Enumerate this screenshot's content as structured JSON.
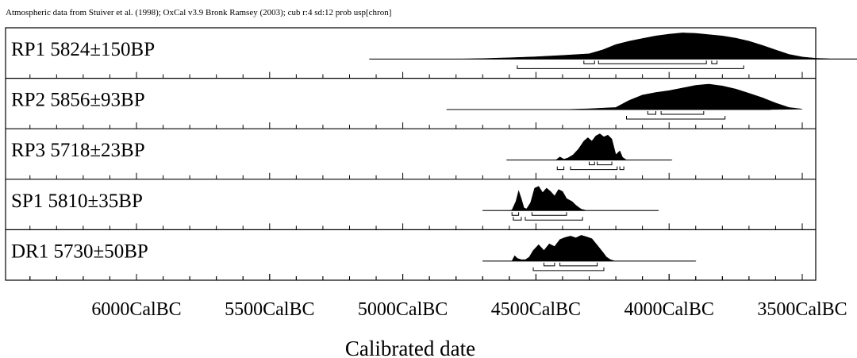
{
  "header": "Atmospheric data from Stuiver et al. (1998); OxCal v3.9 Bronk Ramsey (2003); cub r:4 sd:12 prob usp[chron]",
  "chart_data": {
    "type": "area",
    "x_axis": {
      "label": "Calibrated date",
      "ticks": [
        {
          "year": -6000,
          "label": "6000CalBC"
        },
        {
          "year": -5500,
          "label": "5500CalBC"
        },
        {
          "year": -5000,
          "label": "5000CalBC"
        },
        {
          "year": -4500,
          "label": "4500CalBC"
        },
        {
          "year": -4000,
          "label": "4000CalBC"
        },
        {
          "year": -3500,
          "label": "3500CalBC"
        }
      ],
      "range": [
        -6400,
        -3450
      ]
    },
    "samples": [
      {
        "label": "RP1  5824±150BP",
        "range": [
          -5125,
          -3110
        ],
        "density": [
          [
            -5125,
            0
          ],
          [
            -4800,
            0
          ],
          [
            -4700,
            0.02
          ],
          [
            -4600,
            0.05
          ],
          [
            -4500,
            0.09
          ],
          [
            -4400,
            0.14
          ],
          [
            -4300,
            0.2
          ],
          [
            -4250,
            0.35
          ],
          [
            -4200,
            0.55
          ],
          [
            -4150,
            0.68
          ],
          [
            -4100,
            0.78
          ],
          [
            -4050,
            0.88
          ],
          [
            -4000,
            0.95
          ],
          [
            -3950,
            1.0
          ],
          [
            -3900,
            0.98
          ],
          [
            -3850,
            0.93
          ],
          [
            -3800,
            0.88
          ],
          [
            -3750,
            0.8
          ],
          [
            -3700,
            0.68
          ],
          [
            -3650,
            0.52
          ],
          [
            -3600,
            0.35
          ],
          [
            -3550,
            0.18
          ],
          [
            -3500,
            0.08
          ],
          [
            -3450,
            0.03
          ],
          [
            -3400,
            0.01
          ],
          [
            -3110,
            0
          ]
        ],
        "ranges_95": [
          [
            -4570,
            -3720
          ]
        ],
        "ranges_68": [
          [
            -4320,
            -4280
          ],
          [
            -4265,
            -3860
          ],
          [
            -3840,
            -3820
          ]
        ]
      },
      {
        "label": "RP2  5856±93BP",
        "range": [
          -4835,
          -3620
        ],
        "density": [
          [
            -4835,
            0
          ],
          [
            -4400,
            0
          ],
          [
            -4300,
            0.03
          ],
          [
            -4200,
            0.08
          ],
          [
            -4150,
            0.35
          ],
          [
            -4100,
            0.55
          ],
          [
            -4050,
            0.65
          ],
          [
            -4000,
            0.72
          ],
          [
            -3950,
            0.82
          ],
          [
            -3900,
            0.92
          ],
          [
            -3850,
            0.97
          ],
          [
            -3800,
            0.9
          ],
          [
            -3750,
            0.78
          ],
          [
            -3700,
            0.62
          ],
          [
            -3650,
            0.45
          ],
          [
            -3600,
            0.25
          ],
          [
            -3550,
            0.08
          ],
          [
            -3500,
            0.02
          ],
          [
            -3620,
            0
          ]
        ],
        "ranges_95": [
          [
            -4160,
            -3790
          ]
        ],
        "ranges_68": [
          [
            -4080,
            -4050
          ],
          [
            -4030,
            -3870
          ]
        ]
      },
      {
        "label": "RP3  5718±23BP",
        "range": [
          -4610,
          -3990
        ],
        "density": [
          [
            -4610,
            0
          ],
          [
            -4425,
            0
          ],
          [
            -4410,
            0.12
          ],
          [
            -4395,
            0.03
          ],
          [
            -4380,
            0.08
          ],
          [
            -4360,
            0.2
          ],
          [
            -4340,
            0.42
          ],
          [
            -4320,
            0.72
          ],
          [
            -4305,
            0.85
          ],
          [
            -4290,
            0.72
          ],
          [
            -4275,
            0.92
          ],
          [
            -4260,
            1.0
          ],
          [
            -4245,
            0.88
          ],
          [
            -4230,
            0.95
          ],
          [
            -4215,
            0.8
          ],
          [
            -4200,
            0.2
          ],
          [
            -4185,
            0.35
          ],
          [
            -4175,
            0.1
          ],
          [
            -4160,
            0
          ],
          [
            -3990,
            0
          ]
        ],
        "ranges_95": [
          [
            -4420,
            -4395
          ],
          [
            -4370,
            -4195
          ],
          [
            -4185,
            -4170
          ]
        ],
        "ranges_68": [
          [
            -4300,
            -4280
          ],
          [
            -4270,
            -4215
          ]
        ]
      },
      {
        "label": "SP1  5810±35BP",
        "range": [
          -4700,
          -4040
        ],
        "density": [
          [
            -4700,
            0
          ],
          [
            -4600,
            0
          ],
          [
            -4590,
            0.02
          ],
          [
            -4575,
            0.35
          ],
          [
            -4565,
            0.75
          ],
          [
            -4555,
            0.45
          ],
          [
            -4545,
            0.1
          ],
          [
            -4535,
            0.06
          ],
          [
            -4520,
            0.3
          ],
          [
            -4505,
            0.85
          ],
          [
            -4490,
            0.92
          ],
          [
            -4475,
            0.68
          ],
          [
            -4460,
            0.85
          ],
          [
            -4445,
            0.72
          ],
          [
            -4430,
            0.55
          ],
          [
            -4415,
            0.8
          ],
          [
            -4400,
            0.72
          ],
          [
            -4385,
            0.45
          ],
          [
            -4365,
            0.35
          ],
          [
            -4350,
            0.2
          ],
          [
            -4330,
            0.05
          ],
          [
            -4310,
            0
          ],
          [
            -4040,
            0
          ]
        ],
        "ranges_95": [
          [
            -4585,
            -4555
          ],
          [
            -4540,
            -4325
          ]
        ],
        "ranges_68": [
          [
            -4590,
            -4565
          ],
          [
            -4515,
            -4385
          ]
        ]
      },
      {
        "label": "DR1  5730±50BP",
        "range": [
          -4700,
          -3900
        ],
        "density": [
          [
            -4700,
            0
          ],
          [
            -4590,
            0
          ],
          [
            -4580,
            0.2
          ],
          [
            -4570,
            0.1
          ],
          [
            -4555,
            0.05
          ],
          [
            -4540,
            0.05
          ],
          [
            -4525,
            0.15
          ],
          [
            -4510,
            0.4
          ],
          [
            -4490,
            0.62
          ],
          [
            -4470,
            0.4
          ],
          [
            -4450,
            0.65
          ],
          [
            -4430,
            0.55
          ],
          [
            -4410,
            0.82
          ],
          [
            -4390,
            0.9
          ],
          [
            -4370,
            0.95
          ],
          [
            -4350,
            0.88
          ],
          [
            -4330,
            0.98
          ],
          [
            -4310,
            0.92
          ],
          [
            -4290,
            0.85
          ],
          [
            -4270,
            0.6
          ],
          [
            -4250,
            0.35
          ],
          [
            -4235,
            0.15
          ],
          [
            -4220,
            0.05
          ],
          [
            -4205,
            0
          ],
          [
            -3900,
            0
          ]
        ],
        "ranges_95": [
          [
            -4510,
            -4245
          ]
        ],
        "ranges_68": [
          [
            -4470,
            -4430
          ],
          [
            -4410,
            -4270
          ]
        ]
      }
    ]
  }
}
